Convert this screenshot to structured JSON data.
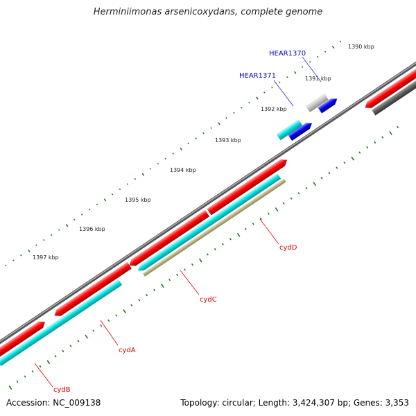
{
  "title": "Herminiimonas arsenicoxydans, complete genome",
  "footer": {
    "accession": "Accession: NC_009138",
    "summary": "Topology: circular; Length: 3,424,307 bp; Genes: 3,353"
  },
  "scale": {
    "ticks": [
      "1390 kbp",
      "1391 kbp",
      "1392 kbp",
      "1393 kbp",
      "1394 kbp",
      "1395 kbp",
      "1396 kbp",
      "1397 kbp"
    ]
  },
  "colors": {
    "backbone": "#7a7a7a",
    "tick": "#1a7a1a",
    "forward_gene": "#ff0000",
    "reverse_gene": "#00d8d8",
    "blue_gene": "#0000ee",
    "pseudo_gene": "#b5ad78",
    "grey_gene": "#5a5a5a",
    "light_grey_gene": "#bdbdbd",
    "label_named": "#dd0000",
    "label_locus": "#0000cc"
  },
  "gene_labels": {
    "hear1370": "HEAR1370",
    "hear1371": "HEAR1371",
    "cydD": "cydD",
    "cydC": "cydC",
    "cydA": "cydA",
    "cydB": "cydB"
  }
}
